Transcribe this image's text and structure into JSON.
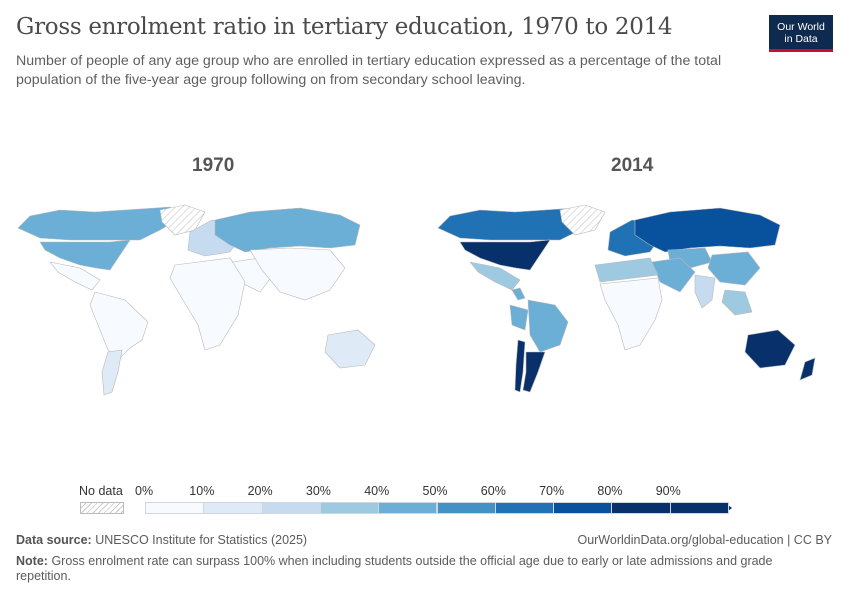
{
  "header": {
    "title": "Gross enrolment ratio in tertiary education, 1970 to 2014",
    "subtitle": "Number of people of any age group who are enrolled in tertiary education expressed as a percentage of the total population of the five-year age group following on from secondary school leaving."
  },
  "logo": {
    "line1": "Our World",
    "line2": "in Data"
  },
  "maps": [
    {
      "label": "1970",
      "regions": [
        {
          "name": "USA",
          "value": 48
        },
        {
          "name": "Canada",
          "value": 45
        },
        {
          "name": "Russia",
          "value": 45
        },
        {
          "name": "Greenland",
          "value": null
        },
        {
          "name": "Mexico",
          "value": 5
        },
        {
          "name": "South America",
          "value": 5
        },
        {
          "name": "Argentina",
          "value": 15
        },
        {
          "name": "Africa",
          "value": 2
        },
        {
          "name": "Middle East",
          "value": 5
        },
        {
          "name": "Asia",
          "value": 3
        },
        {
          "name": "Europe",
          "value": 20
        },
        {
          "name": "Australia",
          "value": 17
        }
      ]
    },
    {
      "label": "2014",
      "regions": [
        {
          "name": "USA",
          "value": 87
        },
        {
          "name": "Canada",
          "value": 60
        },
        {
          "name": "Russia",
          "value": 79
        },
        {
          "name": "Greenland",
          "value": null
        },
        {
          "name": "Mexico",
          "value": 30
        },
        {
          "name": "Central America",
          "value": 45
        },
        {
          "name": "Brazil",
          "value": 49
        },
        {
          "name": "Argentina",
          "value": 80
        },
        {
          "name": "Chile",
          "value": 87
        },
        {
          "name": "Peru",
          "value": 41
        },
        {
          "name": "North Africa",
          "value": 31
        },
        {
          "name": "Sub-Saharan Africa",
          "value": 8
        },
        {
          "name": "Middle East",
          "value": 48
        },
        {
          "name": "Central Asia",
          "value": 45
        },
        {
          "name": "China",
          "value": 43
        },
        {
          "name": "India",
          "value": 24
        },
        {
          "name": "Europe",
          "value": 66
        },
        {
          "name": "Southeast Asia",
          "value": 30
        },
        {
          "name": "Australia",
          "value": 90
        },
        {
          "name": "New Zealand",
          "value": 81
        }
      ]
    }
  ],
  "legend": {
    "no_data": "No data",
    "ticks": [
      "0%",
      "10%",
      "20%",
      "30%",
      "40%",
      "50%",
      "60%",
      "70%",
      "80%",
      "90%"
    ],
    "colors": [
      "#f7fbff",
      "#deebf7",
      "#c6dbef",
      "#9ecae1",
      "#6baed6",
      "#4292c6",
      "#2171b5",
      "#08519c",
      "#08306b",
      "#08306b"
    ]
  },
  "footer": {
    "source_label": "Data source:",
    "source": "UNESCO Institute for Statistics (2025)",
    "url": "OurWorldinData.org/global-education | CC BY",
    "note_label": "Note:",
    "note": "Gross enrolment rate can surpass 100% when including students outside the official age due to early or late admissions and grade repetition."
  }
}
